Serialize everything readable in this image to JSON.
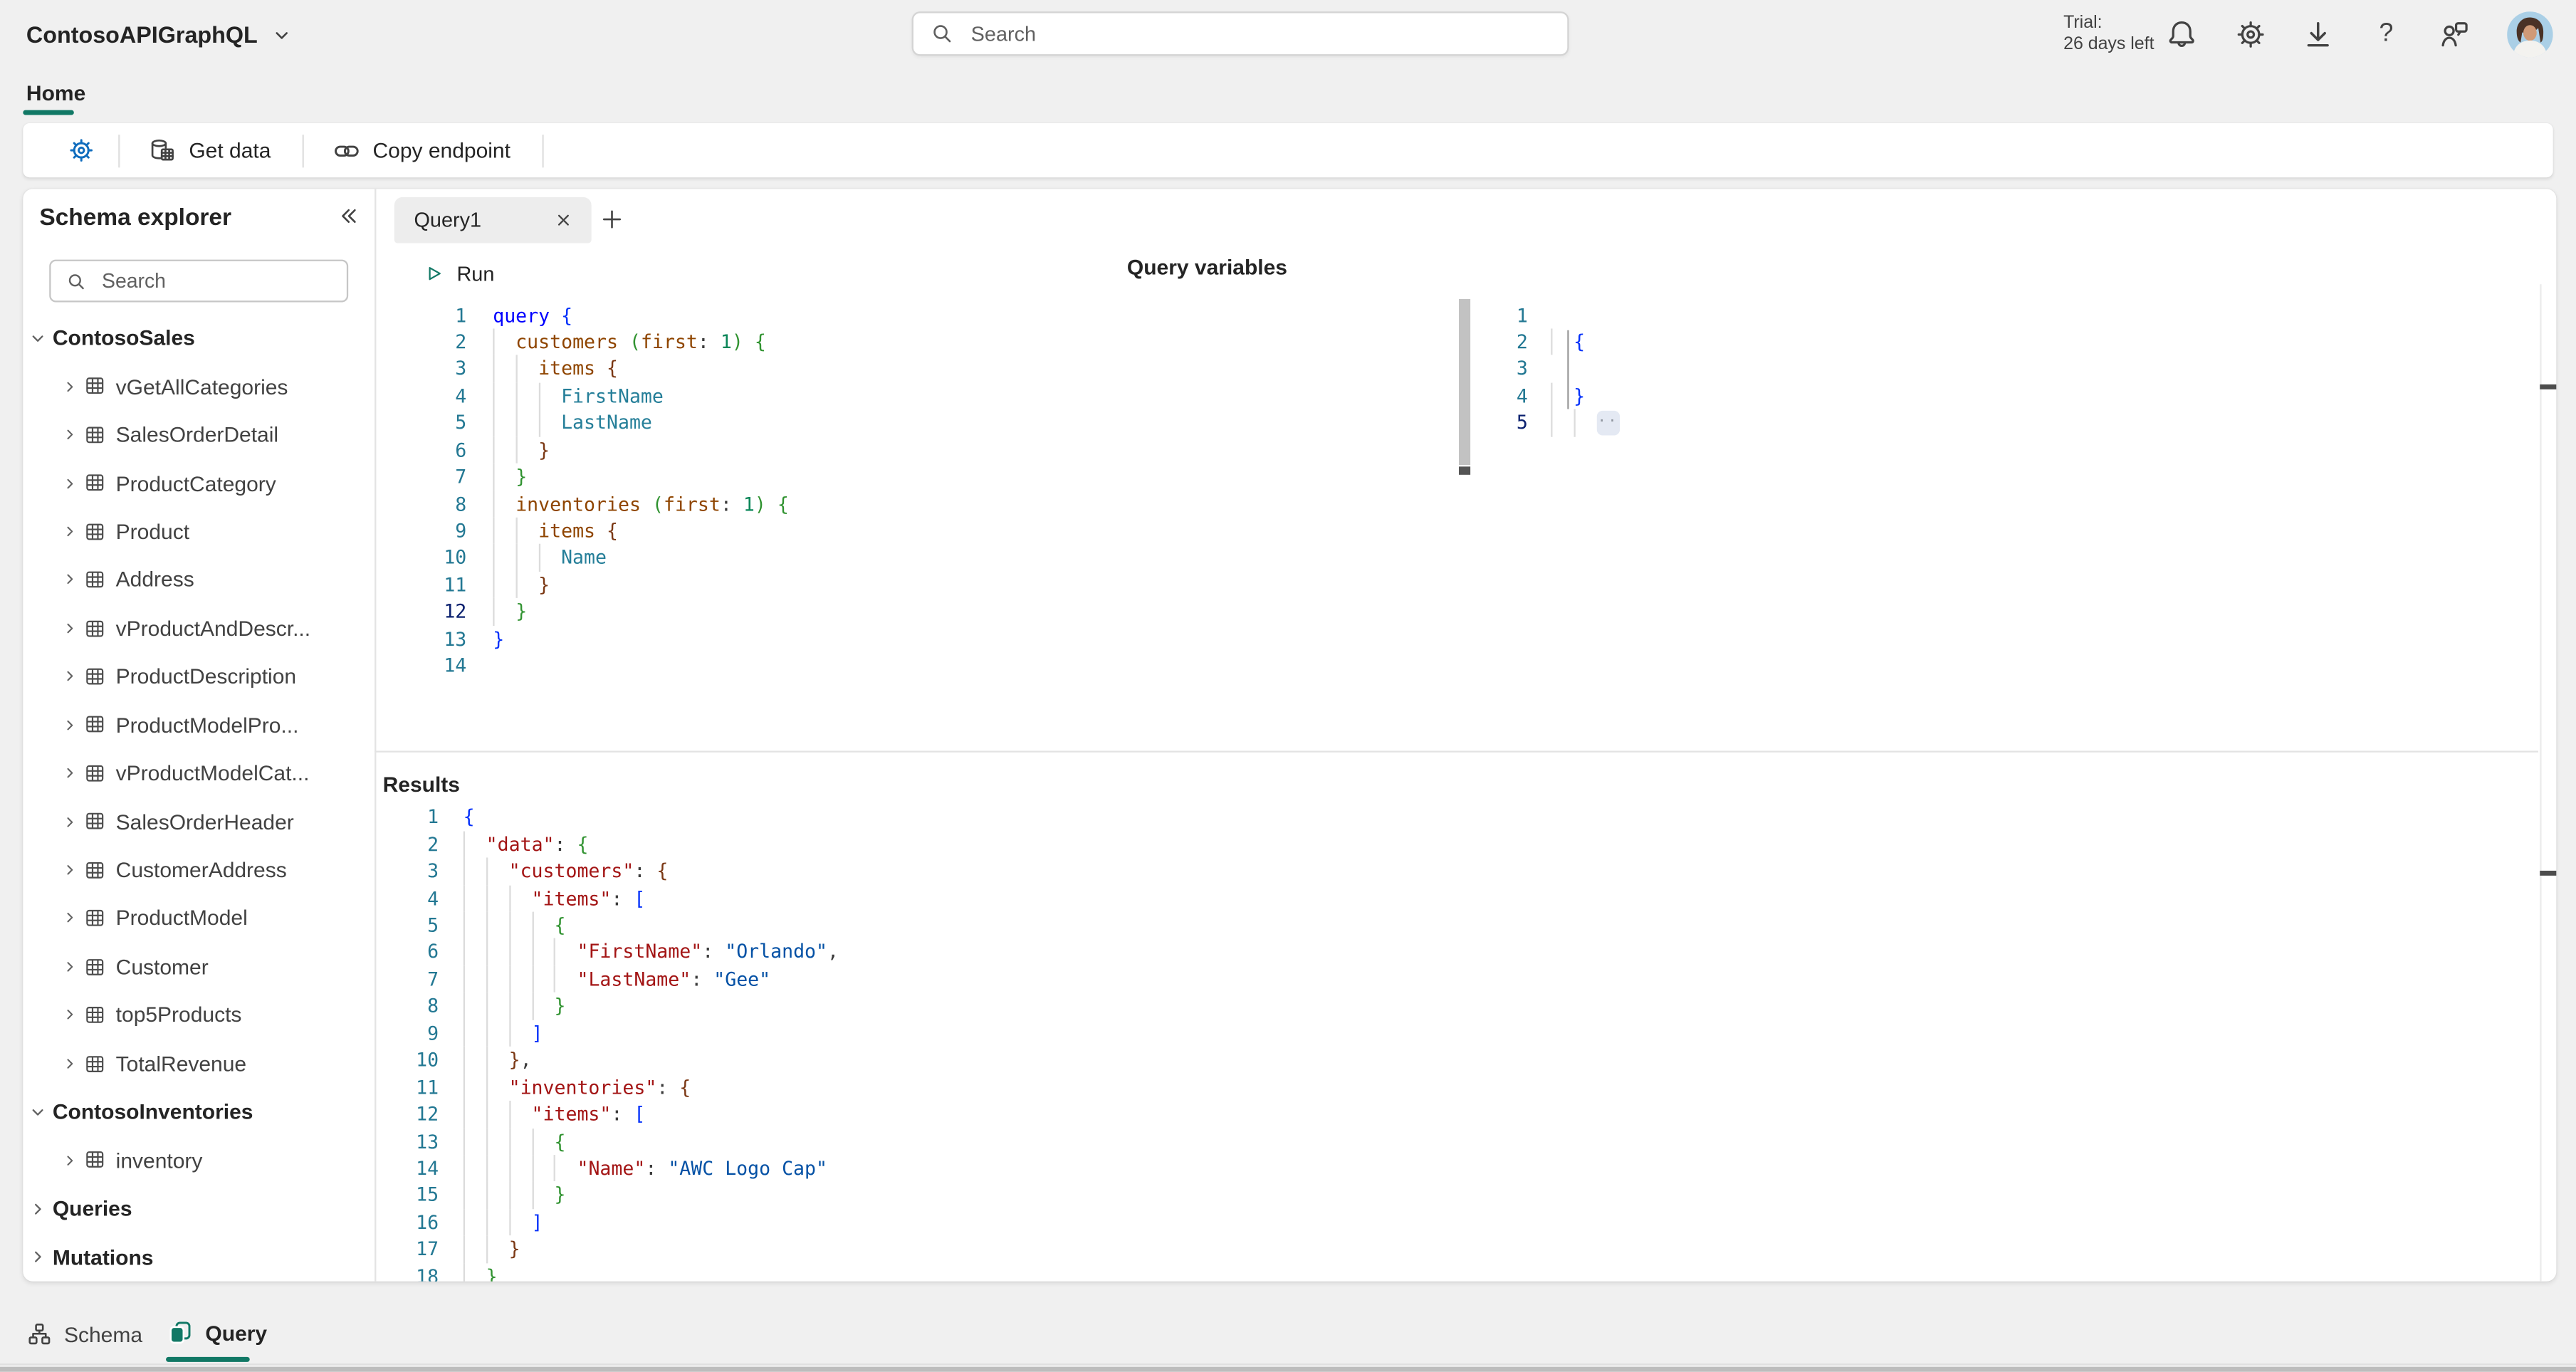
{
  "app": {
    "title": "ContosoAPIGraphQL"
  },
  "header": {
    "search_placeholder": "Search",
    "trial_line1": "Trial:",
    "trial_line2": "26 days left",
    "icons": [
      "notifications-bell",
      "settings-gear",
      "download-arrow",
      "help-question",
      "feedback-person",
      "user-avatar"
    ]
  },
  "nav": {
    "home": "Home"
  },
  "toolbar": {
    "settings_icon": "gear-icon",
    "get_data": "Get data",
    "copy_endpoint": "Copy endpoint"
  },
  "sidebar": {
    "title": "Schema explorer",
    "collapse_icon": "double-chevron-left-icon",
    "search_placeholder": "Search",
    "tree": [
      {
        "label": "ContosoSales",
        "kind": "group",
        "expanded": true
      },
      {
        "label": "vGetAllCategories",
        "kind": "table"
      },
      {
        "label": "SalesOrderDetail",
        "kind": "table"
      },
      {
        "label": "ProductCategory",
        "kind": "table"
      },
      {
        "label": "Product",
        "kind": "table"
      },
      {
        "label": "Address",
        "kind": "table"
      },
      {
        "label": "vProductAndDescr...",
        "kind": "table"
      },
      {
        "label": "ProductDescription",
        "kind": "table"
      },
      {
        "label": "ProductModelPro...",
        "kind": "table"
      },
      {
        "label": "vProductModelCat...",
        "kind": "table"
      },
      {
        "label": "SalesOrderHeader",
        "kind": "table"
      },
      {
        "label": "CustomerAddress",
        "kind": "table"
      },
      {
        "label": "ProductModel",
        "kind": "table"
      },
      {
        "label": "Customer",
        "kind": "table"
      },
      {
        "label": "top5Products",
        "kind": "table"
      },
      {
        "label": "TotalRevenue",
        "kind": "table"
      },
      {
        "label": "ContosoInventories",
        "kind": "group",
        "expanded": true
      },
      {
        "label": "inventory",
        "kind": "table"
      },
      {
        "label": "Queries",
        "kind": "group",
        "expanded": false
      },
      {
        "label": "Mutations",
        "kind": "group",
        "expanded": false
      }
    ]
  },
  "editor": {
    "tab": "Query1",
    "run_label": "Run",
    "query": {
      "active_line": 12,
      "lines": [
        [
          [
            "kw",
            "query"
          ],
          [
            "pl",
            " "
          ],
          [
            "b1",
            "{"
          ]
        ],
        [
          [
            "pl",
            "  "
          ],
          [
            "fld",
            "customers"
          ],
          [
            "pl",
            " "
          ],
          [
            "b2",
            "("
          ],
          [
            "fld",
            "first"
          ],
          [
            "pl",
            ": "
          ],
          [
            "num",
            "1"
          ],
          [
            "b2",
            ")"
          ],
          [
            "pl",
            " "
          ],
          [
            "b2",
            "{"
          ]
        ],
        [
          [
            "pl",
            "    "
          ],
          [
            "fld",
            "items"
          ],
          [
            "pl",
            " "
          ],
          [
            "b3",
            "{"
          ]
        ],
        [
          [
            "pl",
            "      "
          ],
          [
            "leaf",
            "FirstName"
          ]
        ],
        [
          [
            "pl",
            "      "
          ],
          [
            "leaf",
            "LastName"
          ]
        ],
        [
          [
            "pl",
            "    "
          ],
          [
            "b3",
            "}"
          ]
        ],
        [
          [
            "pl",
            "  "
          ],
          [
            "b2",
            "}"
          ]
        ],
        [
          [
            "pl",
            "  "
          ],
          [
            "fld",
            "inventories"
          ],
          [
            "pl",
            " "
          ],
          [
            "b2",
            "("
          ],
          [
            "fld",
            "first"
          ],
          [
            "pl",
            ": "
          ],
          [
            "num",
            "1"
          ],
          [
            "b2",
            ")"
          ],
          [
            "pl",
            " "
          ],
          [
            "b2",
            "{"
          ]
        ],
        [
          [
            "pl",
            "    "
          ],
          [
            "fld",
            "items"
          ],
          [
            "pl",
            " "
          ],
          [
            "b3",
            "{"
          ]
        ],
        [
          [
            "pl",
            "      "
          ],
          [
            "leaf",
            "Name"
          ]
        ],
        [
          [
            "pl",
            "    "
          ],
          [
            "b3",
            "}"
          ]
        ],
        [
          [
            "pl",
            "  "
          ],
          [
            "b2",
            "}"
          ]
        ],
        [
          [
            "b1",
            "}"
          ]
        ],
        []
      ]
    },
    "variables": {
      "title": "Query variables",
      "active_line": 5,
      "lines": [
        [],
        [
          [
            "pl",
            "  "
          ],
          [
            "b1",
            "{"
          ]
        ],
        [],
        [
          [
            "pl",
            "  "
          ],
          [
            "b1",
            "}"
          ]
        ],
        [
          [
            "pl",
            "    "
          ],
          [
            "fold",
            "··"
          ]
        ]
      ]
    },
    "results": {
      "title": "Results",
      "active_line": 0,
      "lines": [
        [
          [
            "b1",
            "{"
          ]
        ],
        [
          [
            "pl",
            "  "
          ],
          [
            "key",
            "\"data\""
          ],
          [
            "pl",
            ": "
          ],
          [
            "b2",
            "{"
          ]
        ],
        [
          [
            "pl",
            "    "
          ],
          [
            "key",
            "\"customers\""
          ],
          [
            "pl",
            ": "
          ],
          [
            "b3",
            "{"
          ]
        ],
        [
          [
            "pl",
            "      "
          ],
          [
            "key",
            "\"items\""
          ],
          [
            "pl",
            ": "
          ],
          [
            "b1",
            "["
          ]
        ],
        [
          [
            "pl",
            "        "
          ],
          [
            "b2",
            "{"
          ]
        ],
        [
          [
            "pl",
            "          "
          ],
          [
            "key",
            "\"FirstName\""
          ],
          [
            "pl",
            ": "
          ],
          [
            "str",
            "\"Orlando\""
          ],
          [
            "pl",
            ","
          ]
        ],
        [
          [
            "pl",
            "          "
          ],
          [
            "key",
            "\"LastName\""
          ],
          [
            "pl",
            ": "
          ],
          [
            "str",
            "\"Gee\""
          ]
        ],
        [
          [
            "pl",
            "        "
          ],
          [
            "b2",
            "}"
          ]
        ],
        [
          [
            "pl",
            "      "
          ],
          [
            "b1",
            "]"
          ]
        ],
        [
          [
            "pl",
            "    "
          ],
          [
            "b3",
            "}"
          ],
          [
            "pl",
            ","
          ]
        ],
        [
          [
            "pl",
            "    "
          ],
          [
            "key",
            "\"inventories\""
          ],
          [
            "pl",
            ": "
          ],
          [
            "b3",
            "{"
          ]
        ],
        [
          [
            "pl",
            "      "
          ],
          [
            "key",
            "\"items\""
          ],
          [
            "pl",
            ": "
          ],
          [
            "b1",
            "["
          ]
        ],
        [
          [
            "pl",
            "        "
          ],
          [
            "b2",
            "{"
          ]
        ],
        [
          [
            "pl",
            "          "
          ],
          [
            "key",
            "\"Name\""
          ],
          [
            "pl",
            ": "
          ],
          [
            "str",
            "\"AWC Logo Cap\""
          ]
        ],
        [
          [
            "pl",
            "        "
          ],
          [
            "b2",
            "}"
          ]
        ],
        [
          [
            "pl",
            "      "
          ],
          [
            "b1",
            "]"
          ]
        ],
        [
          [
            "pl",
            "    "
          ],
          [
            "b3",
            "}"
          ]
        ],
        [
          [
            "pl",
            "  "
          ],
          [
            "b2",
            "}"
          ]
        ]
      ]
    }
  },
  "footer": {
    "schema": "Schema",
    "query": "Query"
  },
  "colors": {
    "accent": "#117865",
    "toolbar_gear_blue": "#0f6cbd",
    "page_background": "#f0f0f0",
    "line_number": "#237893",
    "line_number_active": "#0b216f",
    "token_keyword": "#0000ff",
    "token_bracket_level1": "#0431fa",
    "token_bracket_level2": "#319331",
    "token_bracket_level3": "#7b3814",
    "token_field": "#8f4500",
    "token_leaf_field": "#267f99",
    "token_number": "#098658",
    "token_json_key": "#a31515",
    "token_json_string": "#0451a5"
  }
}
